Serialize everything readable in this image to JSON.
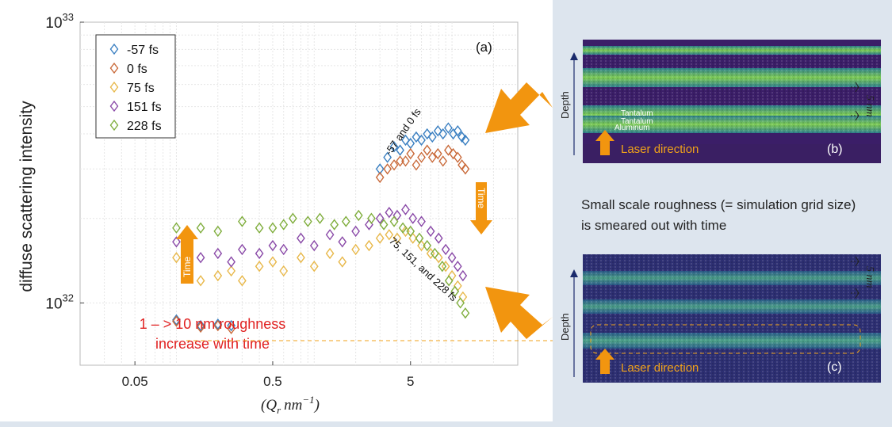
{
  "chart_data": {
    "type": "scatter",
    "panel_label": "(a)",
    "xlabel_main": "(Q",
    "xlabel_sub": "r",
    "xlabel_unit": "nm",
    "xlabel_exp": "−1",
    "xlabel_close": ")",
    "ylabel": "diffuse scattering intensity",
    "x_scale": "log",
    "y_scale": "log",
    "xlim": [
      0.02,
      30
    ],
    "ylim": [
      6e+31,
      1e+33
    ],
    "x_ticks": [
      {
        "v": 0.05,
        "label": "0.05"
      },
      {
        "v": 0.5,
        "label": "0.5"
      },
      {
        "v": 5,
        "label": "5"
      }
    ],
    "y_ticks": [
      {
        "v": 1e+32,
        "base": "10",
        "exp": "32"
      },
      {
        "v": 1e+33,
        "base": "10",
        "exp": "33"
      }
    ],
    "grid": true,
    "legend_position": "top-left",
    "series": [
      {
        "name": "-57 fs",
        "color": "#3a7fc1",
        "points": [
          [
            0.1,
            8.7e+31
          ],
          [
            0.15,
            8.3e+31
          ],
          [
            0.2,
            8.4e+31
          ],
          [
            0.25,
            8.3e+31
          ],
          [
            3.0,
            3e+32
          ],
          [
            3.4,
            3.3e+32
          ],
          [
            3.8,
            3.6e+32
          ],
          [
            4.2,
            3.5e+32
          ],
          [
            4.6,
            3.8e+32
          ],
          [
            5.0,
            3.7e+32
          ],
          [
            5.5,
            3.9e+32
          ],
          [
            6.0,
            3.8e+32
          ],
          [
            6.6,
            4e+32
          ],
          [
            7.2,
            3.9e+32
          ],
          [
            7.9,
            4.1e+32
          ],
          [
            8.6,
            4e+32
          ],
          [
            9.4,
            4.2e+32
          ],
          [
            10.2,
            4e+32
          ],
          [
            11.0,
            4.1e+32
          ],
          [
            11.8,
            3.9e+32
          ],
          [
            12.5,
            3.8e+32
          ]
        ]
      },
      {
        "name": "0 fs",
        "color": "#c96a3a",
        "points": [
          [
            0.1,
            8.6e+31
          ],
          [
            0.15,
            8.2e+31
          ],
          [
            0.2,
            8.3e+31
          ],
          [
            0.25,
            8.1e+31
          ],
          [
            3.0,
            2.8e+32
          ],
          [
            3.4,
            3e+32
          ],
          [
            3.8,
            3.1e+32
          ],
          [
            4.2,
            3.2e+32
          ],
          [
            4.6,
            3.2e+32
          ],
          [
            5.0,
            3.4e+32
          ],
          [
            5.5,
            3.1e+32
          ],
          [
            6.0,
            3.3e+32
          ],
          [
            6.6,
            3.5e+32
          ],
          [
            7.2,
            3.3e+32
          ],
          [
            7.9,
            3.4e+32
          ],
          [
            8.6,
            3.2e+32
          ],
          [
            9.4,
            3.5e+32
          ],
          [
            10.2,
            3.4e+32
          ],
          [
            11.0,
            3.3e+32
          ],
          [
            11.8,
            3.1e+32
          ],
          [
            12.5,
            3e+32
          ]
        ]
      },
      {
        "name": "75 fs",
        "color": "#e8b84a",
        "points": [
          [
            0.1,
            1.45e+32
          ],
          [
            0.15,
            1.2e+32
          ],
          [
            0.2,
            1.25e+32
          ],
          [
            0.25,
            1.3e+32
          ],
          [
            0.3,
            1.2e+32
          ],
          [
            0.4,
            1.35e+32
          ],
          [
            0.5,
            1.4e+32
          ],
          [
            0.6,
            1.3e+32
          ],
          [
            0.8,
            1.45e+32
          ],
          [
            1.0,
            1.35e+32
          ],
          [
            1.3,
            1.5e+32
          ],
          [
            1.6,
            1.4e+32
          ],
          [
            2.0,
            1.55e+32
          ],
          [
            2.5,
            1.6e+32
          ],
          [
            3.0,
            1.7e+32
          ],
          [
            3.5,
            1.75e+32
          ],
          [
            4.0,
            1.7e+32
          ],
          [
            4.6,
            1.8e+32
          ],
          [
            5.2,
            1.7e+32
          ],
          [
            6.0,
            1.6e+32
          ],
          [
            7.0,
            1.5e+32
          ],
          [
            8.0,
            1.45e+32
          ],
          [
            9.0,
            1.35e+32
          ],
          [
            10.0,
            1.25e+32
          ],
          [
            11.0,
            1.15e+32
          ],
          [
            12.0,
            1.05e+32
          ]
        ]
      },
      {
        "name": "151 fs",
        "color": "#8a4aa8",
        "points": [
          [
            0.1,
            1.65e+32
          ],
          [
            0.15,
            1.45e+32
          ],
          [
            0.2,
            1.5e+32
          ],
          [
            0.25,
            1.4e+32
          ],
          [
            0.3,
            1.55e+32
          ],
          [
            0.4,
            1.5e+32
          ],
          [
            0.5,
            1.6e+32
          ],
          [
            0.6,
            1.55e+32
          ],
          [
            0.8,
            1.7e+32
          ],
          [
            1.0,
            1.6e+32
          ],
          [
            1.3,
            1.75e+32
          ],
          [
            1.6,
            1.65e+32
          ],
          [
            2.0,
            1.8e+32
          ],
          [
            2.5,
            1.9e+32
          ],
          [
            3.0,
            2e+32
          ],
          [
            3.5,
            2.1e+32
          ],
          [
            4.0,
            2.05e+32
          ],
          [
            4.6,
            2.15e+32
          ],
          [
            5.2,
            2e+32
          ],
          [
            6.0,
            1.95e+32
          ],
          [
            7.0,
            1.8e+32
          ],
          [
            8.0,
            1.7e+32
          ],
          [
            9.0,
            1.55e+32
          ],
          [
            10.0,
            1.45e+32
          ],
          [
            11.0,
            1.35e+32
          ],
          [
            12.0,
            1.25e+32
          ]
        ]
      },
      {
        "name": "228 fs",
        "color": "#80ae3e",
        "points": [
          [
            0.1,
            1.85e+32
          ],
          [
            0.15,
            1.85e+32
          ],
          [
            0.2,
            1.8e+32
          ],
          [
            0.3,
            1.95e+32
          ],
          [
            0.4,
            1.85e+32
          ],
          [
            0.5,
            1.85e+32
          ],
          [
            0.6,
            1.9e+32
          ],
          [
            0.7,
            2e+32
          ],
          [
            0.9,
            1.95e+32
          ],
          [
            1.1,
            2e+32
          ],
          [
            1.4,
            1.9e+32
          ],
          [
            1.7,
            1.95e+32
          ],
          [
            2.1,
            2.05e+32
          ],
          [
            2.6,
            2e+32
          ],
          [
            3.2,
            1.9e+32
          ],
          [
            3.8,
            1.95e+32
          ],
          [
            4.4,
            1.85e+32
          ],
          [
            5.0,
            1.8e+32
          ],
          [
            5.8,
            1.7e+32
          ],
          [
            6.6,
            1.6e+32
          ],
          [
            7.5,
            1.5e+32
          ],
          [
            8.5,
            1.35e+32
          ],
          [
            9.5,
            1.2e+32
          ],
          [
            10.5,
            1.1e+32
          ],
          [
            11.5,
            1e+32
          ],
          [
            12.5,
            9.2e+31
          ]
        ]
      }
    ],
    "annotations": {
      "top_cluster": "-57 and 0 fs",
      "bottom_cluster": "75, 151, and 228 fs",
      "time_label": "Time",
      "roughness_line1": "1 – > 10 nm roughness",
      "roughness_line2": "increase with time"
    }
  },
  "panel_b": {
    "label": "(b)",
    "depth_label": "Depth",
    "layer_labels": [
      "Tantalum",
      "Aluminum",
      "Tantalum"
    ],
    "laser_label": "Laser direction",
    "scale_label": "5 nm"
  },
  "middle_text": "Small scale roughness (= simulation grid size) is smeared out with time",
  "panel_c": {
    "label": "(c)",
    "depth_label": "Depth",
    "laser_label": "Laser direction",
    "scale_label": "5 nm"
  },
  "colors": {
    "arrow_orange": "#f2950f",
    "red_text": "#e02020",
    "laser_text": "#f0a21a",
    "panel_bg": "#dde5ee"
  }
}
